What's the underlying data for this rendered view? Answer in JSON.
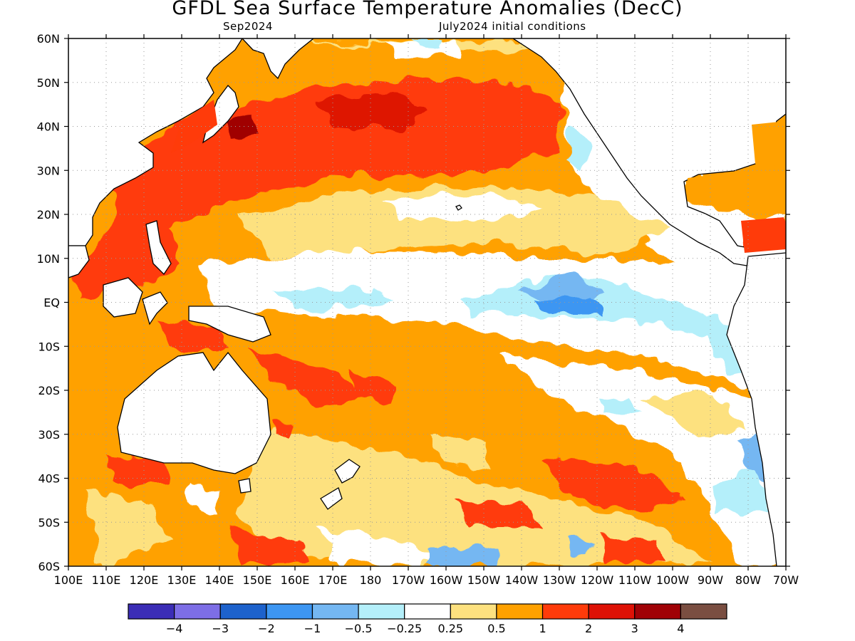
{
  "title": "GFDL Sea Surface Temperature Anomalies (DecC)",
  "subtitle_left": "Sep2024",
  "subtitle_right": "July2024 initial conditions",
  "map": {
    "lat_labels": [
      "60N",
      "50N",
      "40N",
      "30N",
      "20N",
      "10N",
      "EQ",
      "10S",
      "20S",
      "30S",
      "40S",
      "50S",
      "60S"
    ],
    "lon_labels": [
      "100E",
      "110E",
      "120E",
      "130E",
      "140E",
      "150E",
      "160E",
      "170E",
      "180",
      "170W",
      "160W",
      "150W",
      "140W",
      "130W",
      "120W",
      "110W",
      "100W",
      "90W",
      "80W",
      "70W"
    ],
    "colors": {
      "land_outline": "#000000",
      "grid": "#9a9a9a"
    },
    "anomaly_field_description_regions": [
      {
        "region": "Kuroshio extension / North Pacific",
        "level": "2 to 3"
      },
      {
        "region": "Western Pacific warm pool & Indonesia",
        "level": "1 to 2"
      },
      {
        "region": "Equatorial central-eastern Pacific",
        "level": "-1 to -0.25"
      },
      {
        "region": "Southern subtropical Pacific band",
        "level": "1 to 2"
      },
      {
        "region": "Gulf of Mexico / Caribbean",
        "level": "1 to 2"
      }
    ]
  },
  "colorbar": {
    "labels": [
      "−4",
      "−3",
      "−2",
      "−1",
      "−0.5",
      "−0.25",
      "0.25",
      "0.5",
      "1",
      "2",
      "3",
      "4"
    ],
    "colors": [
      "#3b2db6",
      "#7d6ee6",
      "#1d62cc",
      "#3d96f2",
      "#74b7f2",
      "#b4effa",
      "#ffffff",
      "#fde17f",
      "#ffa100",
      "#ff3b0a",
      "#de1206",
      "#a00206",
      "#7a4e41"
    ]
  }
}
